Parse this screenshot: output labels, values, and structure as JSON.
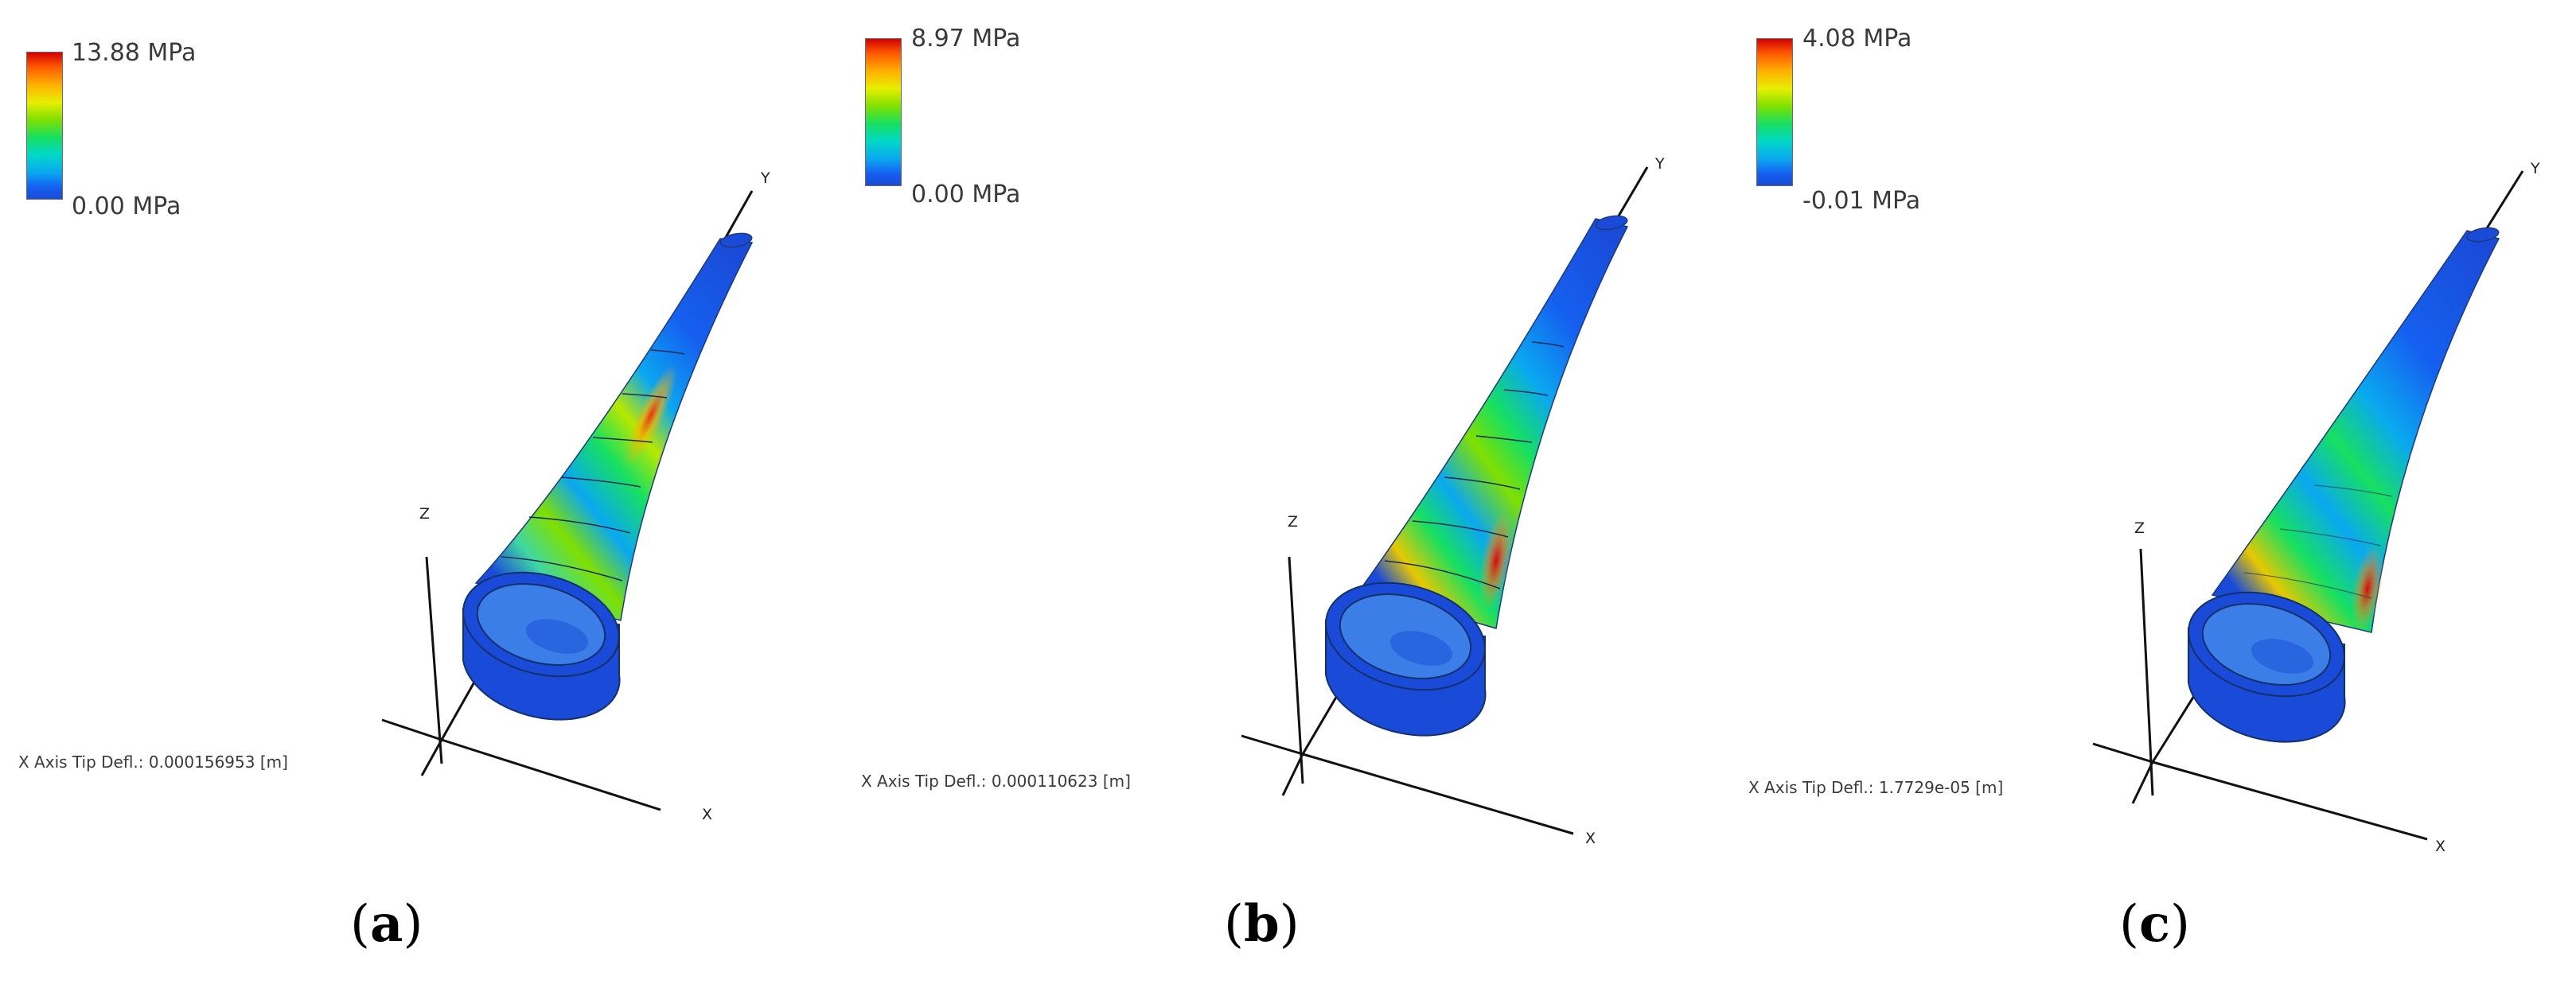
{
  "panels": [
    {
      "id": "a",
      "label_letter": "a",
      "legend": {
        "max": "13.88 MPa",
        "min": "0.00 MPa"
      },
      "tip_deflection": "X Axis Tip Defl.: 0.000156953 [m]",
      "axes": {
        "x": "X",
        "y": "Y",
        "z": "Z"
      }
    },
    {
      "id": "b",
      "label_letter": "b",
      "legend": {
        "max": "8.97 MPa",
        "min": "0.00 MPa"
      },
      "tip_deflection": "X Axis Tip Defl.: 0.000110623 [m]",
      "axes": {
        "x": "X",
        "y": "Y",
        "z": "Z"
      }
    },
    {
      "id": "c",
      "label_letter": "c",
      "legend": {
        "max": "4.08 MPa",
        "min": "-0.01 MPa"
      },
      "tip_deflection": "X Axis Tip Defl.: 1.7729e-05 [m]",
      "axes": {
        "x": "X",
        "y": "Y",
        "z": "Z"
      }
    }
  ],
  "colors": {
    "colormap": [
      "#d40000",
      "#ff5a00",
      "#ffb000",
      "#e8ee00",
      "#7fe000",
      "#16e060",
      "#00d8c8",
      "#0aa8f0",
      "#1560f0",
      "#1a4bd8"
    ],
    "base_blue": "#1a4bd8",
    "axis_line": "#111111"
  }
}
